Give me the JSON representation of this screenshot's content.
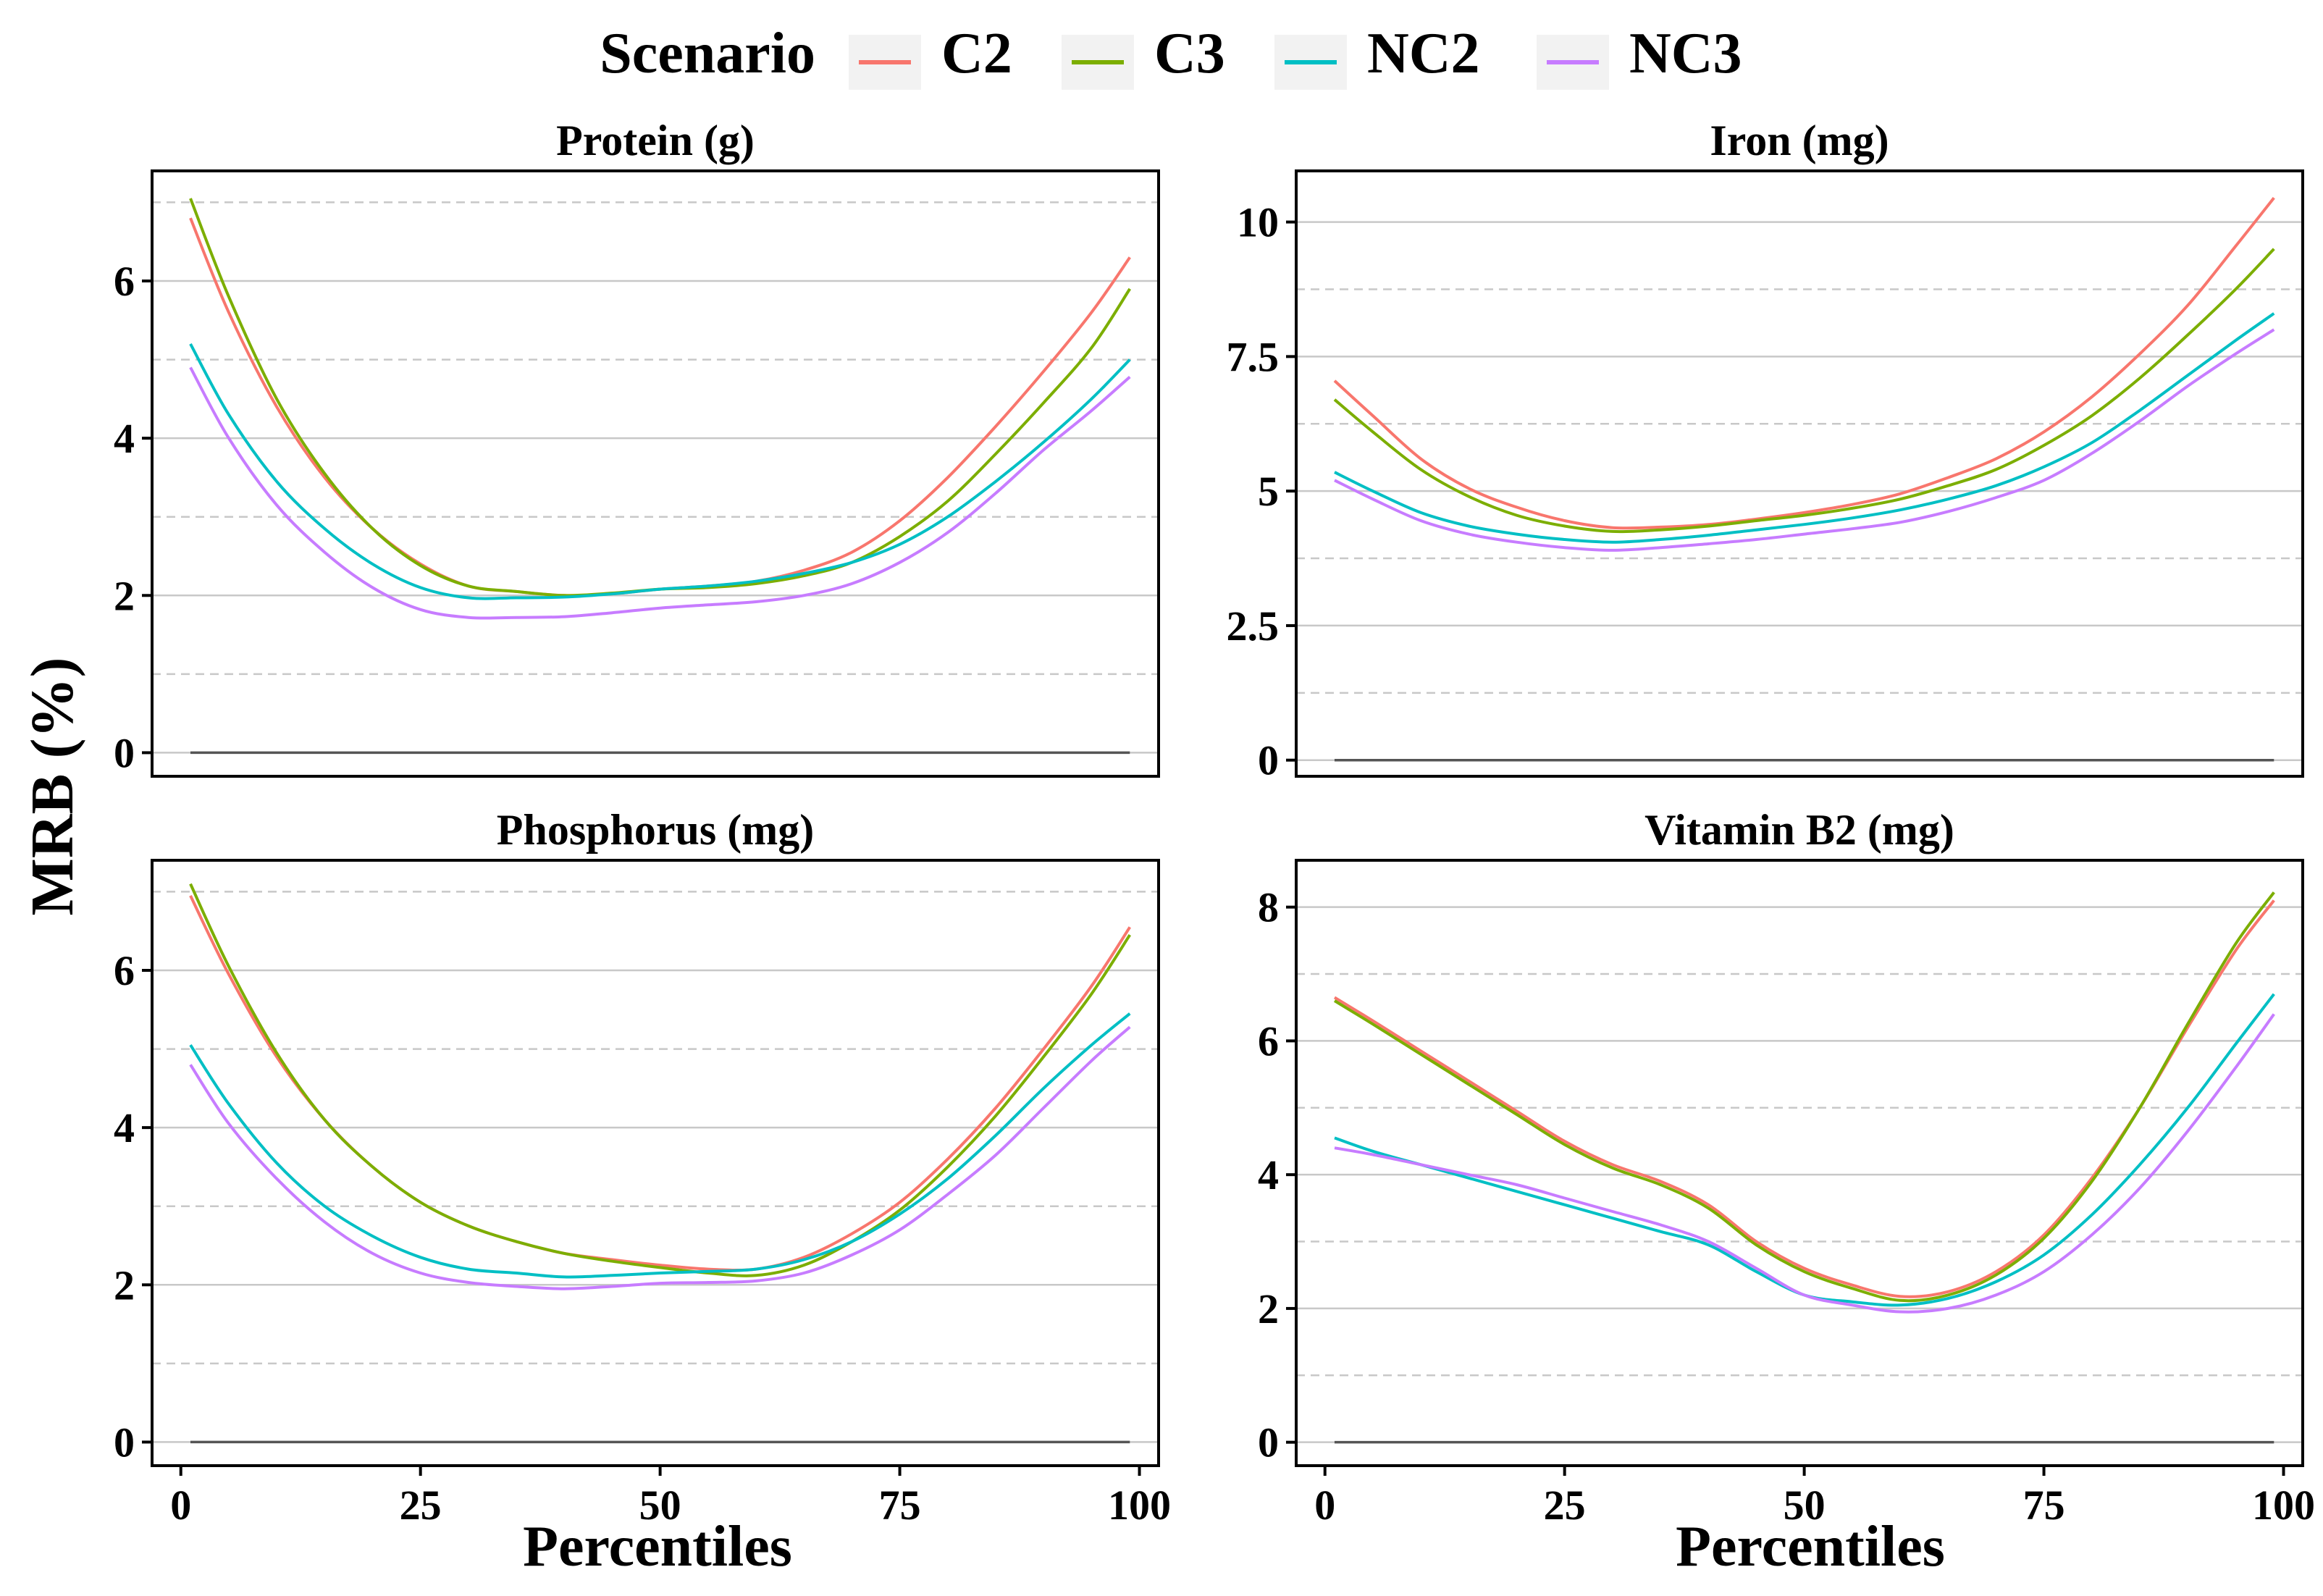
{
  "legend": {
    "title": "Scenario",
    "entries": [
      {
        "label": "C2",
        "color": "#F8766D"
      },
      {
        "label": "C3",
        "color": "#7CAE00"
      },
      {
        "label": "NC2",
        "color": "#00BFC4"
      },
      {
        "label": "NC3",
        "color": "#C77CFF"
      }
    ]
  },
  "ylabel": "MRB (%)",
  "xlabel": "Percentiles",
  "chart_data": [
    {
      "type": "line",
      "title": "Protein (g)",
      "xlim": [
        -3,
        102
      ],
      "ylim": [
        -0.3,
        7.4
      ],
      "xticks": [
        0,
        25,
        50,
        75,
        100
      ],
      "xtick_labels": [
        "0",
        "25",
        "50",
        "75",
        "100"
      ],
      "yticks": [
        0,
        2,
        4,
        6
      ],
      "ytick_labels": [
        "0",
        "2",
        "4",
        "6"
      ],
      "minor_y": [
        1,
        3,
        5,
        7
      ],
      "reference_line": 0,
      "x": [
        1,
        5,
        10,
        15,
        20,
        25,
        30,
        35,
        40,
        45,
        50,
        55,
        60,
        65,
        70,
        75,
        80,
        85,
        90,
        95,
        99
      ],
      "series": [
        {
          "name": "C2",
          "values": [
            6.8,
            5.6,
            4.4,
            3.5,
            2.85,
            2.4,
            2.12,
            2.05,
            2.0,
            2.02,
            2.08,
            2.12,
            2.18,
            2.32,
            2.55,
            2.95,
            3.5,
            4.15,
            4.85,
            5.6,
            6.3
          ]
        },
        {
          "name": "C3",
          "values": [
            7.05,
            5.8,
            4.5,
            3.55,
            2.85,
            2.38,
            2.12,
            2.05,
            2.0,
            2.03,
            2.08,
            2.1,
            2.15,
            2.25,
            2.42,
            2.75,
            3.2,
            3.8,
            4.45,
            5.15,
            5.9
          ]
        },
        {
          "name": "NC2",
          "values": [
            5.2,
            4.3,
            3.45,
            2.85,
            2.4,
            2.1,
            1.97,
            1.97,
            1.98,
            2.02,
            2.08,
            2.12,
            2.18,
            2.28,
            2.42,
            2.65,
            3.0,
            3.45,
            3.95,
            4.5,
            5.0
          ]
        },
        {
          "name": "NC3",
          "values": [
            4.9,
            4.0,
            3.15,
            2.55,
            2.1,
            1.82,
            1.72,
            1.72,
            1.73,
            1.78,
            1.84,
            1.88,
            1.92,
            2.0,
            2.15,
            2.42,
            2.8,
            3.3,
            3.85,
            4.35,
            4.78
          ]
        }
      ]
    },
    {
      "type": "line",
      "title": "Iron (mg)",
      "xlim": [
        -3,
        102
      ],
      "ylim": [
        -0.3,
        10.95
      ],
      "xticks": [
        0,
        25,
        50,
        75,
        100
      ],
      "xtick_labels": [
        "0",
        "25",
        "50",
        "75",
        "100"
      ],
      "yticks": [
        0,
        2.5,
        5,
        7.5,
        10
      ],
      "ytick_labels": [
        "0",
        "2.5",
        "5",
        "7.5",
        "10"
      ],
      "minor_y": [
        1.25,
        3.75,
        6.25,
        8.75
      ],
      "reference_line": 0,
      "x": [
        1,
        5,
        10,
        15,
        20,
        25,
        30,
        35,
        40,
        45,
        50,
        55,
        60,
        65,
        70,
        75,
        80,
        85,
        90,
        95,
        99
      ],
      "series": [
        {
          "name": "C2",
          "values": [
            7.05,
            6.4,
            5.6,
            5.05,
            4.7,
            4.45,
            4.32,
            4.33,
            4.38,
            4.48,
            4.6,
            4.75,
            4.95,
            5.25,
            5.6,
            6.1,
            6.75,
            7.55,
            8.45,
            9.55,
            10.45
          ]
        },
        {
          "name": "C3",
          "values": [
            6.7,
            6.1,
            5.4,
            4.9,
            4.55,
            4.35,
            4.25,
            4.28,
            4.35,
            4.45,
            4.55,
            4.68,
            4.85,
            5.1,
            5.4,
            5.85,
            6.4,
            7.1,
            7.9,
            8.75,
            9.5
          ]
        },
        {
          "name": "NC2",
          "values": [
            5.35,
            5.0,
            4.6,
            4.35,
            4.2,
            4.1,
            4.05,
            4.1,
            4.18,
            4.28,
            4.38,
            4.5,
            4.65,
            4.85,
            5.1,
            5.45,
            5.9,
            6.5,
            7.15,
            7.8,
            8.3
          ]
        },
        {
          "name": "NC3",
          "values": [
            5.2,
            4.85,
            4.45,
            4.2,
            4.05,
            3.95,
            3.9,
            3.95,
            4.02,
            4.1,
            4.2,
            4.3,
            4.42,
            4.62,
            4.88,
            5.2,
            5.7,
            6.3,
            6.95,
            7.55,
            8.0
          ]
        }
      ]
    },
    {
      "type": "line",
      "title": "Phosphorus (mg)",
      "xlim": [
        -3,
        102
      ],
      "ylim": [
        -0.3,
        7.4
      ],
      "xticks": [
        0,
        25,
        50,
        75,
        100
      ],
      "xtick_labels": [
        "0",
        "25",
        "50",
        "75",
        "100"
      ],
      "yticks": [
        0,
        2,
        4,
        6
      ],
      "ytick_labels": [
        "0",
        "2",
        "4",
        "6"
      ],
      "minor_y": [
        1,
        3,
        5,
        7
      ],
      "reference_line": 0,
      "x": [
        1,
        5,
        10,
        15,
        20,
        25,
        30,
        35,
        40,
        45,
        50,
        55,
        60,
        65,
        70,
        75,
        80,
        85,
        90,
        95,
        99
      ],
      "series": [
        {
          "name": "C2",
          "values": [
            6.95,
            5.95,
            4.9,
            4.1,
            3.5,
            3.05,
            2.75,
            2.55,
            2.4,
            2.32,
            2.25,
            2.2,
            2.2,
            2.35,
            2.65,
            3.05,
            3.6,
            4.25,
            5.0,
            5.8,
            6.55
          ]
        },
        {
          "name": "C3",
          "values": [
            7.1,
            6.05,
            4.95,
            4.1,
            3.5,
            3.05,
            2.75,
            2.55,
            2.4,
            2.3,
            2.22,
            2.15,
            2.12,
            2.25,
            2.55,
            2.95,
            3.5,
            4.15,
            4.9,
            5.7,
            6.45
          ]
        },
        {
          "name": "NC2",
          "values": [
            5.05,
            4.3,
            3.55,
            3.0,
            2.62,
            2.35,
            2.2,
            2.15,
            2.1,
            2.12,
            2.15,
            2.17,
            2.2,
            2.32,
            2.55,
            2.9,
            3.35,
            3.9,
            4.5,
            5.05,
            5.45
          ]
        },
        {
          "name": "NC3",
          "values": [
            4.8,
            4.05,
            3.35,
            2.8,
            2.4,
            2.15,
            2.03,
            1.98,
            1.95,
            1.98,
            2.02,
            2.03,
            2.05,
            2.15,
            2.38,
            2.7,
            3.15,
            3.65,
            4.25,
            4.85,
            5.28
          ]
        }
      ]
    },
    {
      "type": "line",
      "title": "Vitamin B2 (mg)",
      "xlim": [
        -3,
        102
      ],
      "ylim": [
        -0.35,
        8.7
      ],
      "xticks": [
        0,
        25,
        50,
        75,
        100
      ],
      "xtick_labels": [
        "0",
        "25",
        "50",
        "75",
        "100"
      ],
      "yticks": [
        0,
        2,
        4,
        6,
        8
      ],
      "ytick_labels": [
        "0",
        "2",
        "4",
        "6",
        "8"
      ],
      "minor_y": [
        1,
        3,
        5,
        7
      ],
      "reference_line": 0,
      "x": [
        1,
        5,
        10,
        15,
        20,
        25,
        30,
        35,
        40,
        45,
        50,
        55,
        60,
        65,
        70,
        75,
        80,
        85,
        90,
        95,
        99
      ],
      "series": [
        {
          "name": "C2",
          "values": [
            6.65,
            6.3,
            5.85,
            5.4,
            4.95,
            4.5,
            4.15,
            3.9,
            3.55,
            3.0,
            2.6,
            2.35,
            2.18,
            2.25,
            2.55,
            3.1,
            3.95,
            5.0,
            6.2,
            7.35,
            8.1
          ]
        },
        {
          "name": "C3",
          "values": [
            6.6,
            6.25,
            5.8,
            5.35,
            4.9,
            4.45,
            4.1,
            3.85,
            3.5,
            2.95,
            2.55,
            2.3,
            2.12,
            2.2,
            2.5,
            3.05,
            3.9,
            5.0,
            6.25,
            7.45,
            8.22
          ]
        },
        {
          "name": "NC2",
          "values": [
            4.55,
            4.35,
            4.15,
            3.95,
            3.75,
            3.55,
            3.35,
            3.15,
            2.95,
            2.55,
            2.2,
            2.1,
            2.05,
            2.15,
            2.4,
            2.8,
            3.4,
            4.15,
            5.0,
            5.95,
            6.7
          ]
        },
        {
          "name": "NC3",
          "values": [
            4.4,
            4.3,
            4.15,
            4.0,
            3.85,
            3.65,
            3.45,
            3.25,
            3.0,
            2.6,
            2.2,
            2.05,
            1.95,
            2.0,
            2.2,
            2.55,
            3.1,
            3.8,
            4.65,
            5.6,
            6.4
          ]
        }
      ]
    }
  ]
}
